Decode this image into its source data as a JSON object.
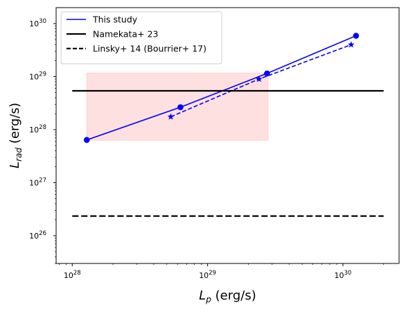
{
  "chart_data": {
    "type": "line",
    "x_scale": "log",
    "y_scale": "log",
    "xlim": [
      7.6e+27,
      2.6e+30
    ],
    "ylim": [
      3e+25,
      2e+30
    ],
    "xlabel": "L_p (erg/s)",
    "ylabel": "L_rad (erg/s)",
    "x_ticks": [
      {
        "value": 1e+28,
        "base": "10",
        "exp": "28"
      },
      {
        "value": 1e+29,
        "base": "10",
        "exp": "29"
      },
      {
        "value": 1e+30,
        "base": "10",
        "exp": "30"
      }
    ],
    "y_ticks": [
      {
        "value": 1e+26,
        "base": "10",
        "exp": "26"
      },
      {
        "value": 1e+27,
        "base": "10",
        "exp": "27"
      },
      {
        "value": 1e+28,
        "base": "10",
        "exp": "28"
      },
      {
        "value": 1e+29,
        "base": "10",
        "exp": "29"
      },
      {
        "value": 1e+30,
        "base": "10",
        "exp": "30"
      }
    ],
    "legend_position": "upper-left",
    "series": [
      {
        "name": "This study",
        "kind": "line",
        "color": "#0000ff",
        "line": "solid",
        "marker": "circle",
        "x": [
          1.28e+28,
          6.3e+28,
          2.75e+29,
          1.25e+30
        ],
        "y": [
          6.4e+27,
          2.65e+28,
          1.15e+29,
          5.9e+29
        ]
      },
      {
        "name": "",
        "kind": "line",
        "color": "#0000ff",
        "line": "dashed",
        "marker": "star",
        "x": [
          5.35e+28,
          2.4e+29,
          1.15e+30
        ],
        "y": [
          1.75e+28,
          9e+28,
          4e+29
        ]
      },
      {
        "name": "Namekata+ 23",
        "kind": "hline",
        "color": "#000000",
        "line": "solid",
        "y": 5.4e+28,
        "x_range": [
          1e+28,
          2e+30
        ]
      },
      {
        "name": "Linsky+ 14 (Bourrier+ 17)",
        "kind": "hline",
        "color": "#000000",
        "line": "dashed",
        "y": 2.35e+26,
        "x_range": [
          1e+28,
          2e+30
        ]
      }
    ],
    "shaded_region": {
      "color": "#ff0000",
      "opacity": 0.12,
      "x_range": [
        1.28e+28,
        2.8e+29
      ],
      "y_range": [
        6.3e+27,
        1.17e+29
      ]
    }
  }
}
